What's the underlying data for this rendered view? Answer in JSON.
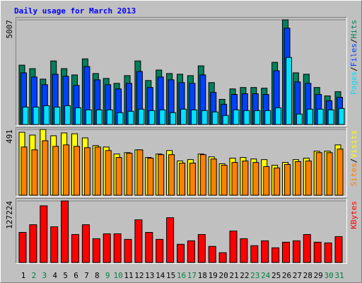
{
  "title": "Daily usage for March 2013",
  "categories": [
    1,
    2,
    3,
    4,
    5,
    6,
    7,
    8,
    9,
    10,
    11,
    12,
    13,
    14,
    15,
    16,
    17,
    18,
    19,
    20,
    21,
    22,
    23,
    24,
    25,
    26,
    27,
    28,
    29,
    30,
    31
  ],
  "label_color": "#000000",
  "weekend_label_color": "#008040",
  "weekend_days": [
    2,
    3,
    9,
    10,
    16,
    17,
    23,
    24,
    30,
    31
  ],
  "legend_separator": "/",
  "chart_data": [
    {
      "type": "bar",
      "ylim": [
        0,
        5007
      ],
      "yticks": [
        5007
      ],
      "series": [
        {
          "name": "Hits",
          "color": "#00805c",
          "values": [
            2839,
            2672,
            2171,
            3039,
            2672,
            2371,
            3139,
            2438,
            2204,
            1970,
            2338,
            3039,
            2104,
            2605,
            2438,
            2405,
            2338,
            2806,
            2004,
            1202,
            1703,
            1770,
            1770,
            1737,
            2973,
            5007,
            2472,
            2405,
            1770,
            1369,
            1570
          ]
        },
        {
          "name": "Files",
          "color": "#0040ff",
          "values": [
            2472,
            2271,
            1904,
            2405,
            2305,
            1870,
            2772,
            2138,
            1904,
            1703,
            1971,
            2538,
            1770,
            2271,
            2138,
            2004,
            1971,
            2371,
            1536,
            969,
            1436,
            1470,
            1470,
            1436,
            2572,
            4609,
            2037,
            1971,
            1436,
            1136,
            1303
          ]
        },
        {
          "name": "Pages",
          "color": "#00e0ff",
          "values": [
            835,
            835,
            902,
            835,
            902,
            802,
            701,
            701,
            701,
            568,
            635,
            735,
            668,
            701,
            568,
            735,
            701,
            668,
            601,
            434,
            701,
            668,
            668,
            668,
            802,
            3206,
            501,
            735,
            735,
            701,
            768
          ]
        }
      ]
    },
    {
      "type": "bar",
      "ylim": [
        0,
        491
      ],
      "yticks": [
        491
      ],
      "series": [
        {
          "name": "Visits",
          "color": "#ffff00",
          "values": [
            470,
            449,
            491,
            444,
            465,
            459,
            428,
            371,
            360,
            308,
            318,
            339,
            282,
            308,
            334,
            256,
            266,
            308,
            287,
            235,
            277,
            282,
            271,
            266,
            224,
            245,
            266,
            277,
            329,
            329,
            376
          ]
        },
        {
          "name": "Sites",
          "color": "#ff8000",
          "values": [
            360,
            339,
            407,
            365,
            376,
            365,
            355,
            360,
            334,
            282,
            313,
            339,
            277,
            303,
            303,
            240,
            240,
            303,
            271,
            224,
            245,
            256,
            245,
            214,
            204,
            230,
            251,
            256,
            318,
            318,
            345
          ]
        }
      ]
    },
    {
      "type": "bar",
      "ylim": [
        0,
        127224
      ],
      "yticks": [
        127224
      ],
      "series": [
        {
          "name": "KBytes",
          "color": "#ff0000",
          "values": [
            62178,
            78084,
            117126,
            73746,
            127224,
            57840,
            78084,
            49164,
            59286,
            59286,
            47718,
            88206,
            62178,
            47718,
            92544,
            37596,
            44826,
            57840,
            33258,
            20244,
            65070,
            49164,
            34704,
            44826,
            30366,
            41934,
            44826,
            57840,
            41934,
            40488,
            53502
          ]
        }
      ]
    }
  ]
}
